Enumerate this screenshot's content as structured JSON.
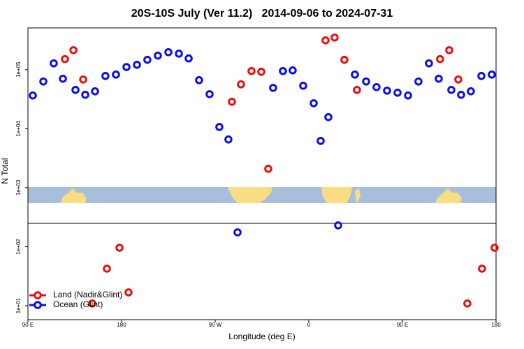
{
  "chart_data": {
    "type": "scatter",
    "title": "20S-10S July (Ver 11.2)   2014-09-06 to 2024-07-31",
    "x_label": "Longitude (deg E)",
    "y_label": "N Total",
    "xlim": [
      90,
      540
    ],
    "xticks": [
      {
        "value": 90,
        "label": "90 E"
      },
      180,
      {
        "value": 270,
        "label": "90 W"
      },
      {
        "value": 360,
        "label": "0"
      },
      {
        "value": 450,
        "label": "90 E"
      },
      {
        "value": 540,
        "label": "180"
      }
    ],
    "ylim": [
      5.8,
      510000
    ],
    "yticks": [
      {
        "value": 10,
        "label": "1e+01"
      },
      {
        "value": 100,
        "label": "1e+02"
      },
      {
        "value": 1000,
        "label": "1e+03"
      },
      {
        "value": 10000,
        "label": "1e+04"
      },
      {
        "value": 100000,
        "label": "1e+05"
      }
    ],
    "log_y": true,
    "legend": "lower left",
    "series": [
      {
        "name": "Land (Nadir&Glint)",
        "color": "#e8100f",
        "x": [
          125.6,
          133.7,
          143.1,
          151.8,
          165.9,
          178.0,
          186.7,
          286.1,
          294.8,
          304.9,
          314.3,
          321.0,
          376.1,
          384.8,
          394.2,
          406.3,
          486.2,
          495.0,
          503.7,
          512.4,
          526.5,
          538.6
        ],
        "values": [
          151000,
          214000,
          68200,
          10.9,
          42.4,
          96,
          16.8,
          28600,
          56400,
          94700,
          92100,
          2090,
          314000,
          350000,
          147000,
          45400,
          151000,
          214000,
          68200,
          10.9,
          42.4,
          96
        ]
      },
      {
        "name": "Ocean (Glint)",
        "color": "#0a10e8",
        "x": [
          94.7,
          104.8,
          114.8,
          123.6,
          135.7,
          145.1,
          154.5,
          164.5,
          174.6,
          184.7,
          194.8,
          204.8,
          214.9,
          225.0,
          235.1,
          244.5,
          254.5,
          264.6,
          274.0,
          282.7,
          291.5,
          325.7,
          335.1,
          344.5,
          354.6,
          364.7,
          371.4,
          378.8,
          388.2,
          404.3,
          415.1,
          425.1,
          435.2,
          445.3,
          455.4,
          465.4,
          475.5,
          484.9,
          497.0,
          506.4,
          515.8,
          525.9,
          535.9
        ],
        "values": [
          36500,
          63000,
          128000,
          70200,
          45400,
          37500,
          43000,
          78200,
          82600,
          111000,
          121000,
          147000,
          173000,
          198000,
          187000,
          155000,
          66400,
          38500,
          10700,
          6570,
          175,
          49200,
          94700,
          97300,
          53400,
          27000,
          6210,
          15700,
          230,
          82600,
          63000,
          50600,
          44100,
          40700,
          36500,
          63000,
          128000,
          70200,
          45400,
          37500,
          43000,
          78200,
          82600
        ]
      }
    ]
  }
}
